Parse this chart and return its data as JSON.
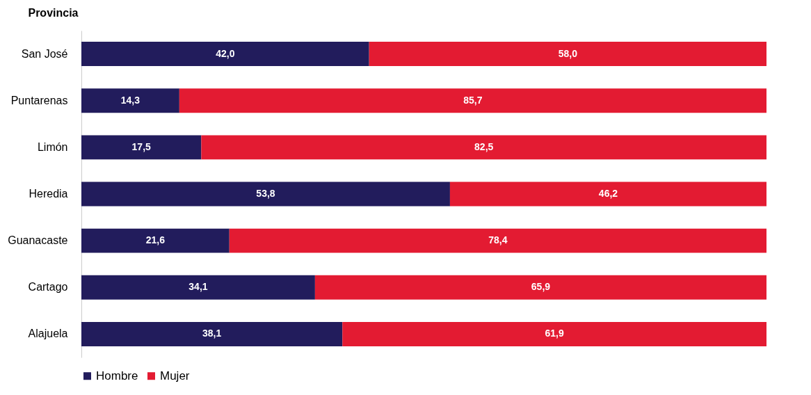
{
  "chart_data": {
    "type": "bar",
    "orientation": "horizontal",
    "stacked": true,
    "ylabel": "Provincia",
    "categories": [
      "San José",
      "Puntarenas",
      "Limón",
      "Heredia",
      "Guanacaste",
      "Cartago",
      "Alajuela"
    ],
    "series": [
      {
        "name": "Hombre",
        "color": "#221c5c",
        "values": [
          42.0,
          14.3,
          17.5,
          53.8,
          21.6,
          34.1,
          38.1
        ],
        "value_labels": [
          "42,0",
          "14,3",
          "17,5",
          "53,8",
          "21,6",
          "34,1",
          "38,1"
        ]
      },
      {
        "name": "Mujer",
        "color": "#e31b32",
        "values": [
          58.0,
          85.7,
          82.5,
          46.2,
          78.4,
          65.9,
          61.9
        ],
        "value_labels": [
          "58,0",
          "85,7",
          "82,5",
          "46,2",
          "78,4",
          "65,9",
          "61,9"
        ]
      }
    ],
    "legend": "bottom",
    "grid": false
  }
}
